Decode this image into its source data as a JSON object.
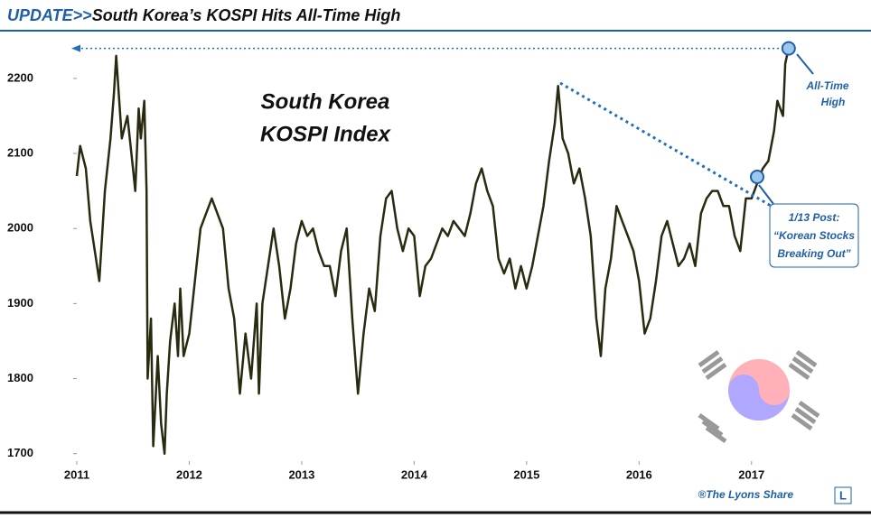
{
  "chart_data": {
    "type": "line",
    "title_prefix": "UPDATE>>",
    "title": "South Korea’s KOSPI Hits All-Time High",
    "subtitle_lines": [
      "South Korea",
      "KOSPI Index"
    ],
    "annotations": {
      "all_time_high": [
        "All-Time",
        "High"
      ],
      "post": [
        "1/13 Post:",
        "“Korean Stocks",
        "Breaking Out”"
      ]
    },
    "credit": "®The Lyons Share",
    "logo": "L",
    "color": "#2a2a10",
    "xlim": [
      2011,
      2017.95
    ],
    "xticks": [
      2011,
      2012,
      2013,
      2014,
      2015,
      2016,
      2017
    ],
    "ylim": [
      1690,
      2260
    ],
    "yticks": [
      1700,
      1800,
      1900,
      2000,
      2100,
      2200
    ],
    "x": [
      2011.0,
      2011.03,
      2011.08,
      2011.12,
      2011.17,
      2011.2,
      2011.25,
      2011.3,
      2011.33,
      2011.35,
      2011.4,
      2011.45,
      2011.5,
      2011.52,
      2011.55,
      2011.57,
      2011.6,
      2011.62,
      2011.63,
      2011.66,
      2011.68,
      2011.72,
      2011.75,
      2011.78,
      2011.8,
      2011.83,
      2011.87,
      2011.9,
      2011.92,
      2011.95,
      2012.0,
      2012.05,
      2012.1,
      2012.15,
      2012.2,
      2012.25,
      2012.3,
      2012.35,
      2012.4,
      2012.45,
      2012.5,
      2012.55,
      2012.6,
      2012.62,
      2012.65,
      2012.7,
      2012.75,
      2012.8,
      2012.85,
      2012.9,
      2012.95,
      2013.0,
      2013.05,
      2013.1,
      2013.15,
      2013.2,
      2013.25,
      2013.3,
      2013.35,
      2013.4,
      2013.45,
      2013.5,
      2013.55,
      2013.6,
      2013.65,
      2013.7,
      2013.75,
      2013.8,
      2013.85,
      2013.9,
      2013.95,
      2014.0,
      2014.05,
      2014.1,
      2014.15,
      2014.2,
      2014.25,
      2014.3,
      2014.35,
      2014.4,
      2014.45,
      2014.5,
      2014.55,
      2014.6,
      2014.65,
      2014.7,
      2014.75,
      2014.8,
      2014.85,
      2014.9,
      2014.95,
      2015.0,
      2015.05,
      2015.1,
      2015.15,
      2015.2,
      2015.25,
      2015.28,
      2015.32,
      2015.37,
      2015.42,
      2015.47,
      2015.52,
      2015.57,
      2015.62,
      2015.66,
      2015.7,
      2015.75,
      2015.8,
      2015.85,
      2015.9,
      2015.95,
      2016.0,
      2016.05,
      2016.1,
      2016.15,
      2016.2,
      2016.25,
      2016.3,
      2016.35,
      2016.4,
      2016.45,
      2016.5,
      2016.55,
      2016.6,
      2016.65,
      2016.7,
      2016.75,
      2016.8,
      2016.85,
      2016.9,
      2016.95,
      2017.0,
      2017.05,
      2017.1,
      2017.15,
      2017.2,
      2017.23,
      2017.28,
      2017.3,
      2017.33
    ],
    "series": [
      {
        "name": "KOSPI",
        "values": [
          2070,
          2110,
          2080,
          2010,
          1960,
          1930,
          2050,
          2120,
          2180,
          2230,
          2120,
          2150,
          2080,
          2050,
          2160,
          2120,
          2170,
          2050,
          1800,
          1880,
          1710,
          1830,
          1740,
          1700,
          1780,
          1850,
          1900,
          1830,
          1920,
          1830,
          1860,
          1930,
          2000,
          2020,
          2040,
          2020,
          2000,
          1920,
          1880,
          1780,
          1860,
          1800,
          1900,
          1780,
          1900,
          1950,
          2000,
          1950,
          1880,
          1920,
          1980,
          2010,
          1990,
          2000,
          1970,
          1950,
          1950,
          1910,
          1970,
          2000,
          1880,
          1780,
          1860,
          1920,
          1890,
          1990,
          2040,
          2050,
          2000,
          1970,
          2000,
          1990,
          1910,
          1950,
          1960,
          1980,
          2000,
          1990,
          2010,
          2000,
          1990,
          2020,
          2060,
          2080,
          2050,
          2030,
          1960,
          1940,
          1960,
          1920,
          1950,
          1920,
          1950,
          1990,
          2030,
          2090,
          2140,
          2190,
          2120,
          2100,
          2060,
          2080,
          2040,
          1990,
          1880,
          1830,
          1920,
          1960,
          2030,
          2010,
          1990,
          1970,
          1930,
          1860,
          1880,
          1930,
          1990,
          2010,
          1980,
          1950,
          1960,
          1980,
          1950,
          2020,
          2040,
          2050,
          2050,
          2030,
          2030,
          1990,
          1970,
          2040,
          2040,
          2060,
          2080,
          2090,
          2130,
          2170,
          2150,
          2220,
          2240
        ]
      }
    ]
  }
}
